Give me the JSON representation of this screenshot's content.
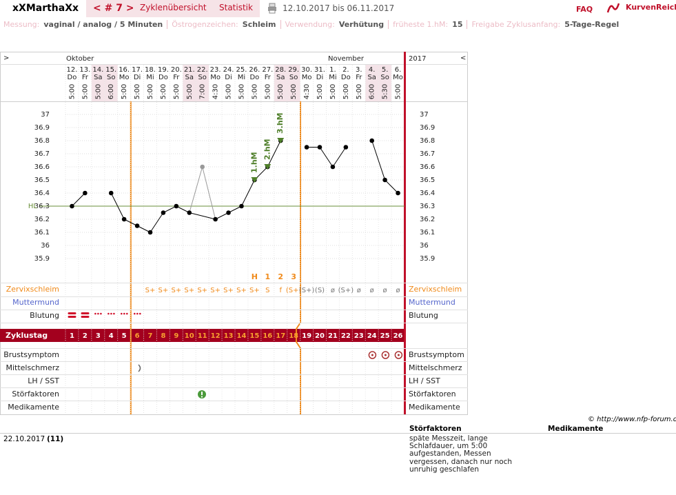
{
  "header": {
    "user": "xXMarthaXx",
    "cycle_nav": "< # 7 >",
    "tabs": [
      "Zyklenübersicht",
      "Statistik"
    ],
    "date_range": "12.10.2017 bis 06.11.2017",
    "faq": "FAQ",
    "brand": "KurvenReich"
  },
  "info": [
    {
      "label": "Messung:",
      "value": "vaginal / analog / 5 Minuten"
    },
    {
      "label": "Östrogenzeichen:",
      "value": "Schleim"
    },
    {
      "label": "Verwendung:",
      "value": "Verhütung"
    },
    {
      "label": "früheste 1.hM:",
      "value": "15"
    },
    {
      "label": "Freigabe Zyklusanfang:",
      "value": "5-Tage-Regel"
    }
  ],
  "chart_data": {
    "type": "line",
    "nav_left": ">",
    "nav_right": "<",
    "month_left": "Oktober",
    "month_right": "November",
    "year": "2017",
    "categories": [
      "12.",
      "13.",
      "14.",
      "15.",
      "16.",
      "17.",
      "18.",
      "19.",
      "20.",
      "21.",
      "22.",
      "23.",
      "24.",
      "25.",
      "26.",
      "27.",
      "28.",
      "29.",
      "30.",
      "31.",
      "1.",
      "2.",
      "3.",
      "4.",
      "5.",
      "6."
    ],
    "weekdays": [
      "Do",
      "Fr",
      "Sa",
      "So",
      "Mo",
      "Di",
      "Mi",
      "Do",
      "Fr",
      "Sa",
      "So",
      "Mo",
      "Di",
      "Mi",
      "Do",
      "Fr",
      "Sa",
      "So",
      "Mo",
      "Di",
      "Mi",
      "Do",
      "Fr",
      "Sa",
      "So",
      "Mo"
    ],
    "times": [
      "5:00",
      "5:00",
      "5:00",
      "6:00",
      "5:00",
      "5:00",
      "5:00",
      "5:00",
      "5:00",
      "5:00",
      "7:00",
      "4:30",
      "5:00",
      "5:00",
      "5:00",
      "5:00",
      "5:00",
      "5:00",
      "4:30",
      "5:00",
      "5:00",
      "5:00",
      "5:00",
      "6:00",
      "5:30",
      "5:00"
    ],
    "values": [
      36.3,
      36.4,
      null,
      36.4,
      36.2,
      36.15,
      36.1,
      36.25,
      36.3,
      36.25,
      36.6,
      36.2,
      36.25,
      36.3,
      36.5,
      36.6,
      36.8,
      null,
      36.75,
      36.75,
      36.6,
      36.75,
      null,
      36.8,
      36.5,
      36.4
    ],
    "color": "#000000",
    "excluded": [
      "22."
    ],
    "excluded_color": "#999999",
    "ylim": [
      35.8,
      37.1
    ],
    "yticks": [
      37,
      36.9,
      36.8,
      36.7,
      36.6,
      36.5,
      36.4,
      36.3,
      36.2,
      36.1,
      36,
      35.9
    ],
    "grid": true,
    "coverline": {
      "label": "HL",
      "value": 36.3,
      "color": "#6a8f3a"
    },
    "annotations": [
      {
        "label": "1.hM",
        "category": "26."
      },
      {
        "label": "2.hM",
        "category": "27."
      },
      {
        "label": "3.hM",
        "category": "28."
      }
    ],
    "annotation_color": "#4f7f2a",
    "mucus_markers": [
      {
        "label": "H",
        "category": "26."
      },
      {
        "label": "1",
        "category": "27."
      },
      {
        "label": "2",
        "category": "28."
      },
      {
        "label": "3",
        "category": "29."
      }
    ],
    "mucus": [
      null,
      null,
      null,
      null,
      null,
      null,
      "S+",
      "S+",
      "S+",
      "S+",
      "S+",
      "S+",
      "S+",
      "S+",
      "S+",
      "S",
      "f",
      "(S+)",
      "(S+)",
      "(S)",
      "ø",
      "(S+)",
      "ø",
      "ø",
      "ø",
      "ø"
    ],
    "cycle_label": "Zyklustag",
    "cycle_days": [
      1,
      2,
      3,
      4,
      5,
      6,
      7,
      8,
      9,
      10,
      11,
      12,
      13,
      14,
      15,
      16,
      17,
      18,
      19,
      20,
      21,
      22,
      23,
      24,
      25,
      26
    ],
    "rows": [
      "Zervixschleim",
      "Muttermund",
      "Blutung",
      "Brustsymptom",
      "Mittelschmerz",
      "LH / SST",
      "Störfaktoren",
      "Medikamente"
    ]
  },
  "footer": {
    "copyright": "© http://www.nfp-forum.de",
    "headers": [
      "Störfaktoren",
      "Medikamente"
    ],
    "date": "22.10.2017",
    "day": "(11)",
    "note": "späte Messzeit, lange Schlafdauer, um 5:00 aufgestanden, Messen vergessen, danach nur noch unruhig geschlafen"
  }
}
